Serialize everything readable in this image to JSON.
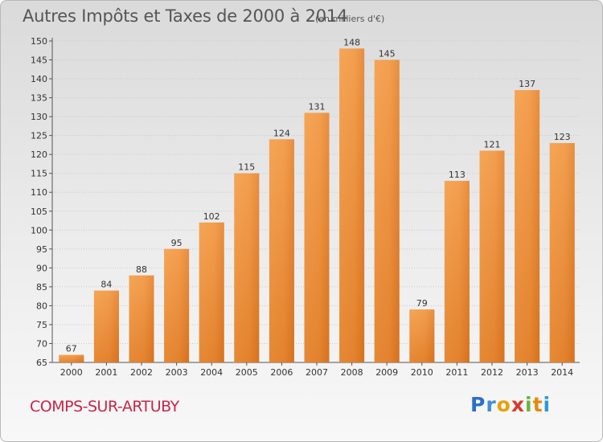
{
  "chart_data": {
    "type": "bar",
    "title": "Autres Impôts et Taxes de 2000 à 2014",
    "subtitle": "(en milliers d'€)",
    "categories": [
      "2000",
      "2001",
      "2002",
      "2003",
      "2004",
      "2005",
      "2006",
      "2007",
      "2008",
      "2009",
      "2010",
      "2011",
      "2012",
      "2013",
      "2014"
    ],
    "values": [
      67,
      84,
      88,
      95,
      102,
      115,
      124,
      131,
      148,
      145,
      79,
      113,
      121,
      137,
      123
    ],
    "ylim": [
      65,
      150
    ],
    "yticks": [
      65,
      70,
      75,
      80,
      85,
      90,
      95,
      100,
      105,
      110,
      115,
      120,
      125,
      130,
      135,
      140,
      145,
      150
    ],
    "grid": true,
    "bar_color": "#e8852a",
    "bar_color_light": "#f6a85a"
  },
  "footer": {
    "commune": "COMPS-SUR-ARTUBY",
    "brand": [
      "P",
      "r",
      "o",
      "x",
      "i",
      "t",
      "i"
    ]
  }
}
